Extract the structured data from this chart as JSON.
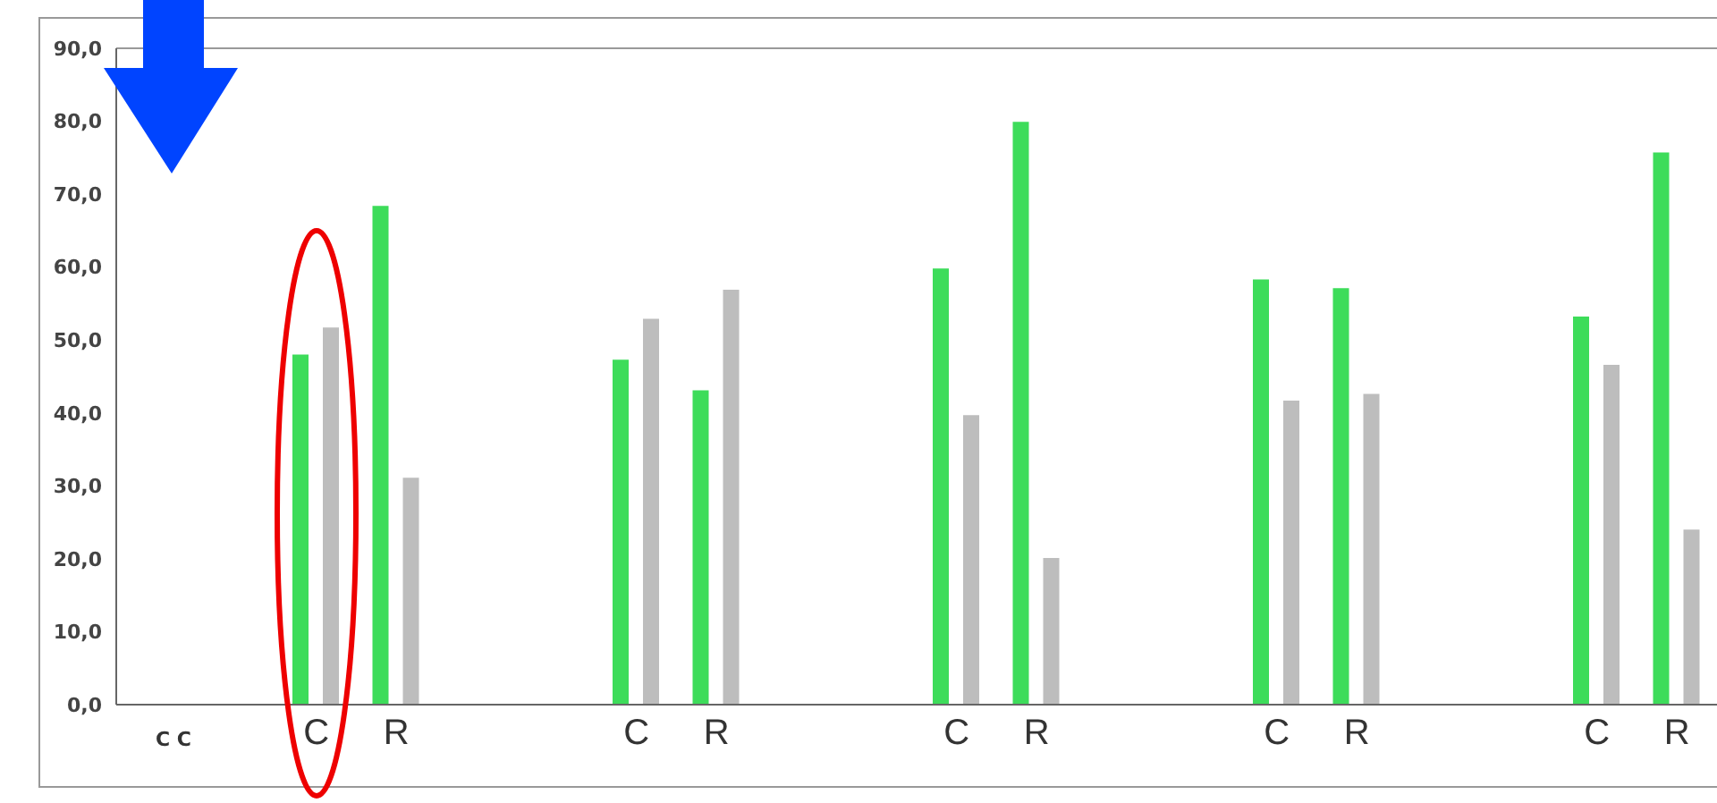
{
  "chart_data": {
    "type": "bar",
    "xlabel": "C C",
    "categories": [
      null,
      null,
      "C",
      "R",
      null,
      null,
      "C",
      "R",
      null,
      null,
      "C",
      "R",
      null,
      null,
      "C",
      "R",
      null,
      null,
      "C",
      "R"
    ],
    "series": [
      {
        "color": "#3ddc5a",
        "values": [
          null,
          null,
          48.0,
          68.4,
          null,
          null,
          47.3,
          43.1,
          null,
          null,
          59.8,
          79.9,
          null,
          null,
          58.3,
          57.1,
          null,
          null,
          53.2,
          75.7
        ]
      },
      {
        "color": "#bdbdbd",
        "values": [
          null,
          null,
          51.7,
          31.1,
          null,
          null,
          52.9,
          56.9,
          null,
          null,
          39.7,
          20.1,
          null,
          null,
          41.7,
          42.6,
          null,
          null,
          46.6,
          24.0
        ]
      }
    ],
    "ylim": [
      0,
      90
    ],
    "yticks": [
      {
        "value": 0,
        "label": "0,0"
      },
      {
        "value": 10,
        "label": "10,0"
      },
      {
        "value": 20,
        "label": "20,0"
      },
      {
        "value": 30,
        "label": "30,0"
      },
      {
        "value": 40,
        "label": "40,0"
      },
      {
        "value": 50,
        "label": "50,0"
      },
      {
        "value": 60,
        "label": "60,0"
      },
      {
        "value": 70,
        "label": "70,0"
      },
      {
        "value": 80,
        "label": "80,0"
      },
      {
        "value": 90,
        "label": "90,0"
      }
    ],
    "grid": false,
    "legend": false
  }
}
